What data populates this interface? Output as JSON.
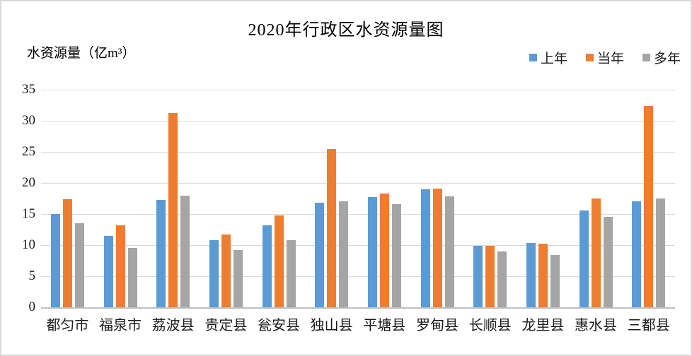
{
  "chart_data": {
    "type": "bar",
    "title": "2020年行政区水资源量图",
    "ylabel": "水资源量（亿m³）",
    "xlabel": "",
    "ylim": [
      0,
      35
    ],
    "ytick_step": 5,
    "ytick_labels": [
      "0",
      "5",
      "10",
      "15",
      "20",
      "25",
      "30",
      "35"
    ],
    "grid": true,
    "legend_position": "top-right",
    "categories": [
      "都匀市",
      "福泉市",
      "荔波县",
      "贵定县",
      "瓮安县",
      "独山县",
      "平塘县",
      "罗甸县",
      "长顺县",
      "龙里县",
      "惠水县",
      "三都县"
    ],
    "series": [
      {
        "name": "上年",
        "color": "#5B9BD5",
        "values": [
          15.0,
          11.5,
          17.3,
          10.8,
          13.2,
          16.8,
          17.7,
          19.0,
          9.9,
          10.3,
          15.6,
          17.0
        ]
      },
      {
        "name": "当年",
        "color": "#ED7D31",
        "values": [
          17.4,
          13.2,
          31.2,
          11.7,
          14.8,
          25.4,
          18.3,
          19.1,
          9.9,
          10.2,
          17.5,
          32.4
        ]
      },
      {
        "name": "多年",
        "color": "#A5A5A5",
        "values": [
          13.5,
          9.5,
          17.9,
          9.2,
          10.8,
          17.0,
          16.6,
          17.8,
          9.0,
          8.4,
          14.5,
          17.5
        ]
      }
    ],
    "colors": {
      "gridline": "#D9D9D9",
      "axis_line": "#BFBFBF",
      "text": "#1A1A1A"
    }
  }
}
